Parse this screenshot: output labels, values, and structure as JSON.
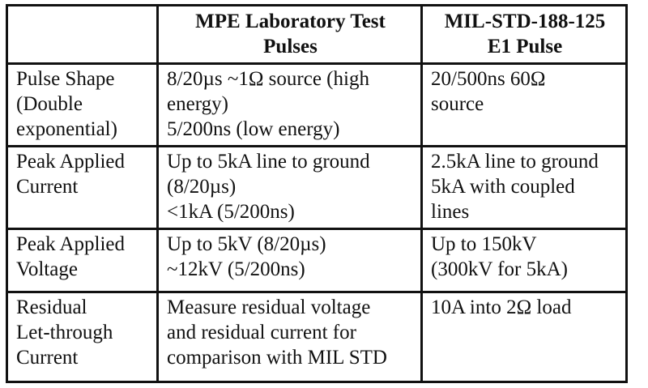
{
  "table": {
    "headers": [
      "",
      "MPE Laboratory Test Pulses",
      "MIL-STD-188-125 E1 Pulse"
    ],
    "header_lines": [
      [],
      [
        "MPE Laboratory Test",
        "Pulses"
      ],
      [
        "MIL-STD-188-125",
        "E1 Pulse"
      ]
    ],
    "rows": [
      {
        "label": [
          "Pulse Shape",
          "(Double",
          "exponential)"
        ],
        "mpe": [
          "8/20µs ~1Ω source (high",
          "energy)",
          "5/200ns (low energy)"
        ],
        "mil": [
          "20/500ns 60Ω",
          "source"
        ]
      },
      {
        "label": [
          "Peak Applied",
          "Current"
        ],
        "mpe": [
          "Up to 5kA line to ground",
          "(8/20µs)",
          "<1kA (5/200ns)"
        ],
        "mil": [
          "2.5kA line to ground",
          "5kA with coupled",
          "lines"
        ]
      },
      {
        "label": [
          "Peak Applied",
          "Voltage"
        ],
        "mpe": [
          "Up to 5kV (8/20µs)",
          "~12kV (5/200ns)"
        ],
        "mil": [
          "Up to 150kV",
          "(300kV for 5kA)"
        ]
      },
      {
        "label": [
          "Residual",
          "Let-through",
          "Current"
        ],
        "mpe": [
          "Measure residual voltage",
          "and residual current for",
          "comparison with MIL STD"
        ],
        "mil": [
          "10A into 2Ω load"
        ]
      }
    ]
  }
}
